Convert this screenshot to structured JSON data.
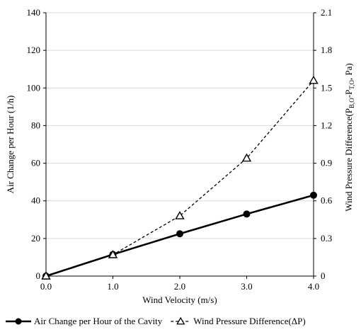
{
  "chart_data": {
    "type": "line",
    "x": [
      0.0,
      1.0,
      2.0,
      3.0,
      4.0
    ],
    "xlabel": "Wind Velocity (m/s)",
    "xlim": [
      0,
      4
    ],
    "xticks": [
      "0.0",
      "1.0",
      "2.0",
      "3.0",
      "4.0"
    ],
    "ylabel": "Air Change per Hour (1/h)",
    "ylim": [
      0,
      140
    ],
    "yticks": [
      "0",
      "20",
      "40",
      "60",
      "80",
      "100",
      "120",
      "140"
    ],
    "y2label": "Wind Pressure Difference(PB,O-PT,O, Pa)",
    "y2label_parts": {
      "prefix": "Wind Pressure Difference(P",
      "sub1": "B,O",
      "mid": "-P",
      "sub2": "T,O",
      "suffix": ", Pa)"
    },
    "y2lim": [
      0,
      2.1
    ],
    "y2ticks": [
      "0",
      "0.3",
      "0.6",
      "0.9",
      "1.2",
      "1.5",
      "1.8",
      "2.1"
    ],
    "grid": true,
    "legend": "bottom",
    "series": [
      {
        "name": "Air Change per Hour of the Cavity",
        "axis": "left",
        "values": [
          0,
          11.5,
          22.5,
          33,
          43
        ],
        "line": "solid",
        "marker": "filled-circle",
        "color": "#000000"
      },
      {
        "name": "Wind Pressure Difference(ΔP)",
        "axis": "right",
        "values": [
          0,
          0.17,
          0.48,
          0.94,
          1.56
        ],
        "line": "dashed",
        "marker": "open-triangle",
        "color": "#000000"
      }
    ]
  }
}
